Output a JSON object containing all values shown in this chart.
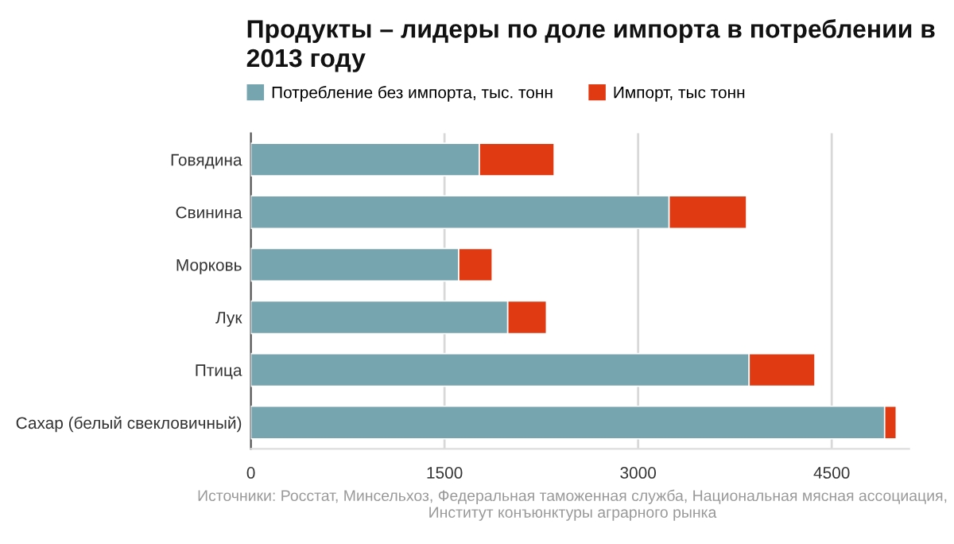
{
  "chart_data": {
    "type": "bar",
    "orientation": "horizontal",
    "stacked": true,
    "title": "Продукты – лидеры по доле импорта в потреблении в 2013 году",
    "categories": [
      "Говядина",
      "Свинина",
      "Морковь",
      "Лук",
      "Птица",
      "Сахар (белый свекловичный)"
    ],
    "series": [
      {
        "name": "Потребление без импорта, тыс. тонн",
        "color": "#76a5af",
        "values": [
          1770,
          3240,
          1610,
          1990,
          3860,
          4910
        ]
      },
      {
        "name": "Импорт, тыс тонн",
        "color": "#e03a12",
        "values": [
          580,
          600,
          260,
          300,
          510,
          90
        ]
      }
    ],
    "xlim": [
      0,
      5100
    ],
    "xticks": [
      0,
      1500,
      3000,
      4500
    ],
    "grid": "x",
    "legend": "top",
    "annotations": [
      "Источники: Росстат, Минсельхоз, Федеральная таможенная служба, Национальная мясная ассоциация, Институт конъюнктуры аграрного рынка"
    ]
  }
}
